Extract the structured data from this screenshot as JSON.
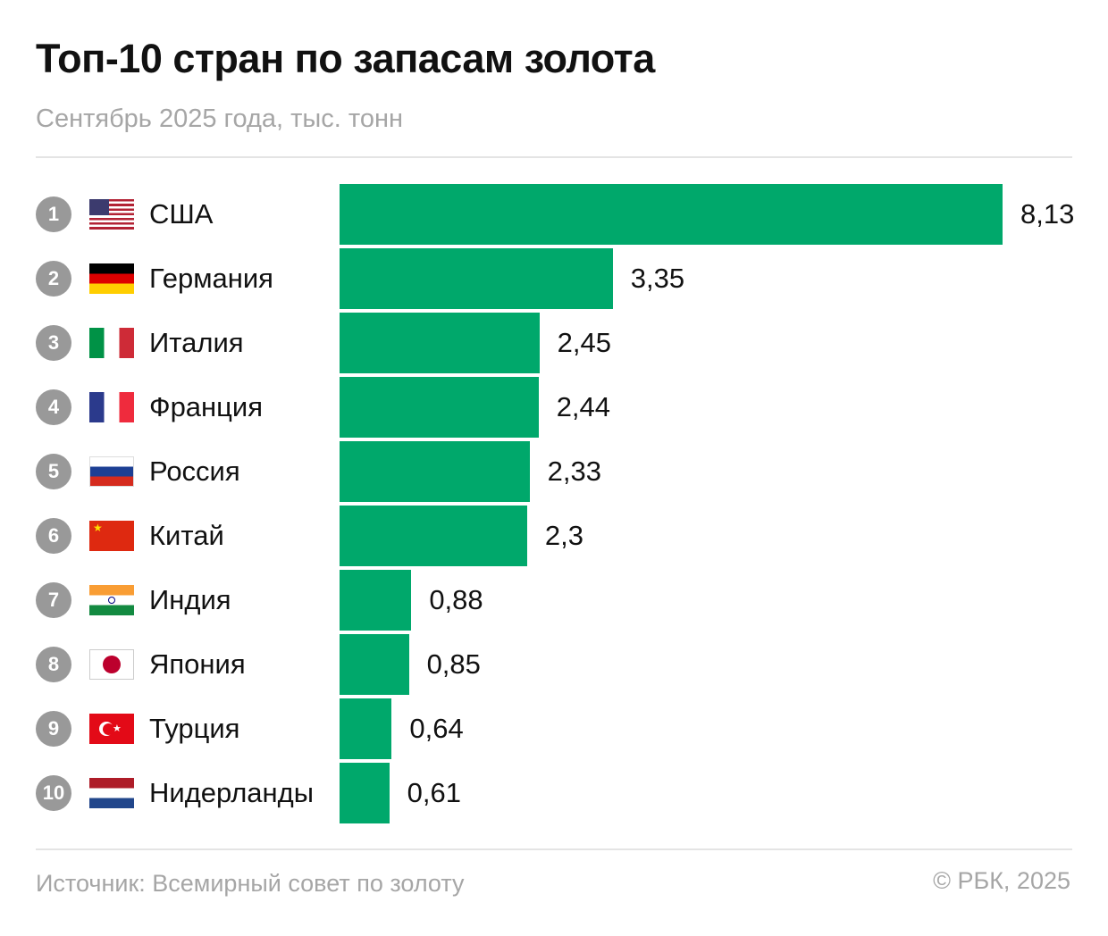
{
  "chart_data": {
    "type": "bar",
    "orientation": "horizontal",
    "title": "Топ-10 стран по запасам золота",
    "subtitle": "Сентябрь 2025 года, тыс. тонн",
    "categories": [
      "США",
      "Германия",
      "Италия",
      "Франция",
      "Россия",
      "Китай",
      "Индия",
      "Япония",
      "Турция",
      "Нидерланды"
    ],
    "ranks": [
      "1",
      "2",
      "3",
      "4",
      "5",
      "6",
      "7",
      "8",
      "9",
      "10"
    ],
    "flags": [
      "us",
      "de",
      "it",
      "fr",
      "ru",
      "cn",
      "in",
      "jp",
      "tr",
      "nl"
    ],
    "values": [
      8.13,
      3.35,
      2.45,
      2.44,
      2.33,
      2.3,
      0.88,
      0.85,
      0.64,
      0.61
    ],
    "value_labels": [
      "8,13",
      "3,35",
      "2,45",
      "2,44",
      "2,33",
      "2,3",
      "0,88",
      "0,85",
      "0,64",
      "0,61"
    ],
    "xlim": [
      0,
      8.13
    ],
    "grid": false,
    "bar_color": "#00a86b",
    "rank_badge_color": "#999999"
  },
  "footer": {
    "source": "Источник: Всемирный совет по золоту",
    "copyright": "© РБК, 2025"
  }
}
